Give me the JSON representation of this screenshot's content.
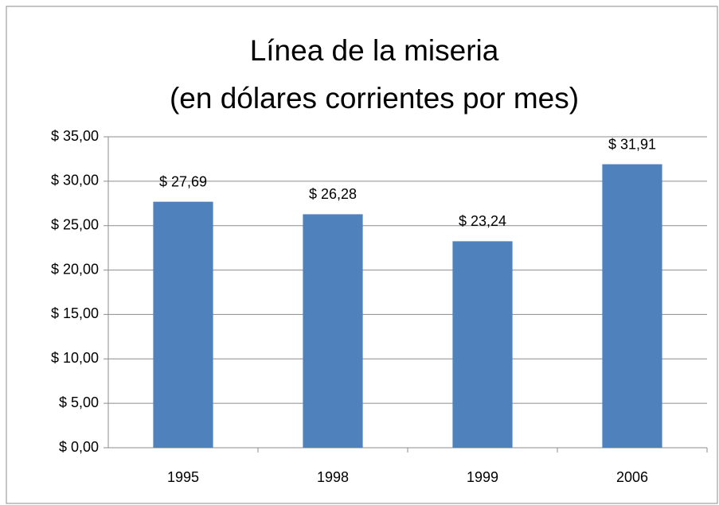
{
  "chart_data": {
    "type": "bar",
    "title": [
      "Línea de la miseria",
      "(en dólares corrientes por mes)"
    ],
    "categories": [
      "1995",
      "1998",
      "1999",
      "2006"
    ],
    "values": [
      27.69,
      26.28,
      23.24,
      31.91
    ],
    "value_labels": [
      "$ 27,69",
      "$ 26,28",
      "$ 23,24",
      "$ 31,91"
    ],
    "color": "#4f81bd",
    "ylim": [
      0,
      35
    ],
    "yticks": [
      {
        "value": 0,
        "label": "$ 0,00"
      },
      {
        "value": 5,
        "label": "$ 5,00"
      },
      {
        "value": 10,
        "label": "$ 10,00"
      },
      {
        "value": 15,
        "label": "$ 15,00"
      },
      {
        "value": 20,
        "label": "$ 20,00"
      },
      {
        "value": 25,
        "label": "$ 25,00"
      },
      {
        "value": 30,
        "label": "$ 30,00"
      },
      {
        "value": 35,
        "label": "$ 35,00"
      }
    ],
    "grid": true
  }
}
